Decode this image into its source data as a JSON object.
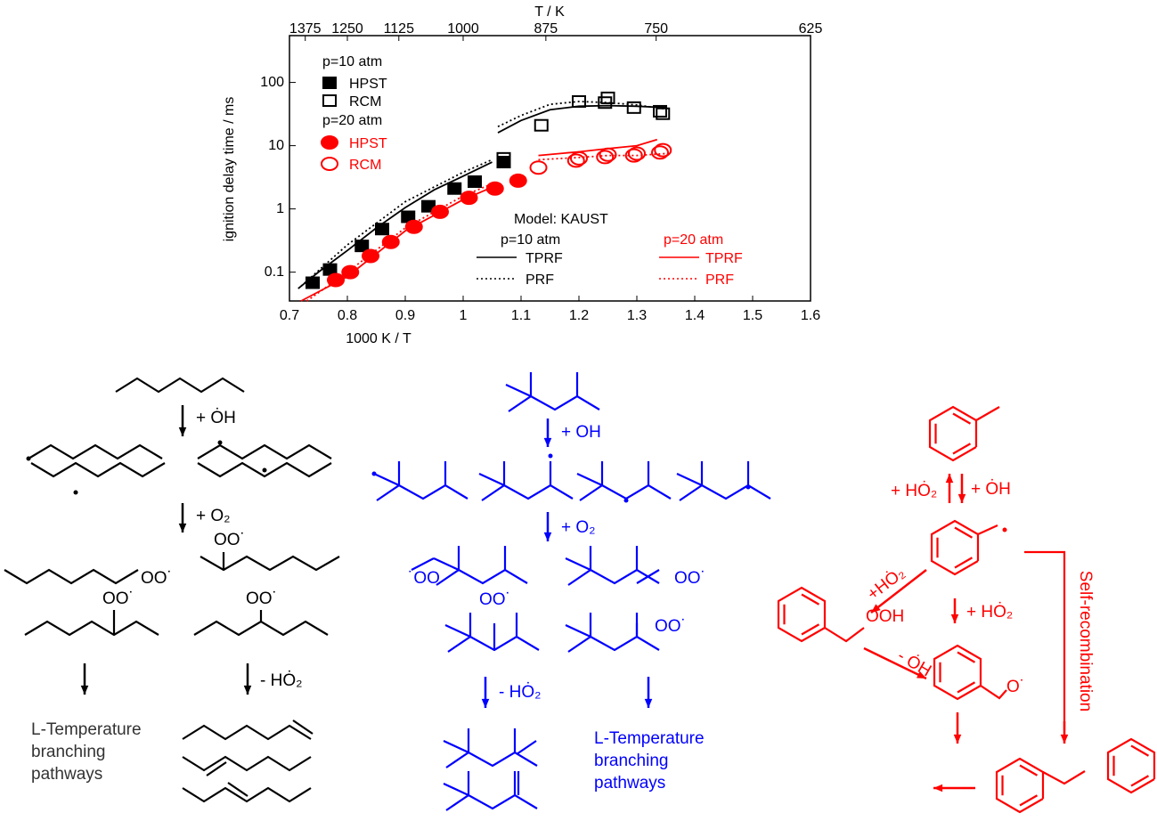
{
  "chart_data": {
    "type": "scatter",
    "xlabel": "1000 K / T",
    "ylabel": "ignition delay time / ms",
    "x2label": "T / K",
    "xlim": [
      0.7,
      1.6
    ],
    "xticks": [
      0.7,
      0.8,
      0.9,
      1.0,
      1.1,
      1.2,
      1.3,
      1.4,
      1.5,
      1.6
    ],
    "ylim": [
      0.035,
      550
    ],
    "yscale": "log",
    "yticks": [
      0.1,
      1,
      10,
      100
    ],
    "x2scale": "reciprocal",
    "x2ticks": [
      1375,
      1250,
      1125,
      1000,
      875,
      750,
      625
    ],
    "legend_titles": [
      "p=10 atm",
      "p=20 atm",
      "Model: KAUST",
      "p=10 atm",
      "p=20 atm"
    ],
    "series": [
      {
        "name": "HPST",
        "color": "#000000",
        "marker": "square",
        "filled": true,
        "x": [
          0.74,
          0.77,
          0.825,
          0.86,
          0.905,
          0.94,
          0.985,
          1.02,
          1.07
        ],
        "values": [
          0.068,
          0.11,
          0.26,
          0.48,
          0.75,
          1.1,
          2.1,
          2.7,
          5.5
        ]
      },
      {
        "name": "RCM",
        "color": "#000000",
        "marker": "square",
        "filled": false,
        "x": [
          1.07,
          1.135,
          1.2,
          1.245,
          1.25,
          1.295,
          1.34,
          1.345
        ],
        "values": [
          6.3,
          21,
          50,
          48,
          57,
          40,
          35,
          32
        ]
      },
      {
        "name": "HPST",
        "color": "#ff0000",
        "marker": "ellipse",
        "filled": true,
        "x": [
          0.78,
          0.805,
          0.84,
          0.875,
          0.915,
          0.96,
          1.01,
          1.055,
          1.095
        ],
        "values": [
          0.075,
          0.1,
          0.18,
          0.3,
          0.52,
          0.9,
          1.5,
          2.1,
          2.8
        ]
      },
      {
        "name": "RCM",
        "color": "#ff0000",
        "marker": "ellipse",
        "filled": false,
        "x": [
          1.13,
          1.195,
          1.2,
          1.245,
          1.25,
          1.295,
          1.3,
          1.34,
          1.345
        ],
        "values": [
          4.5,
          5.8,
          6.3,
          6.6,
          7.2,
          7,
          7.5,
          7.8,
          8.5
        ]
      },
      {
        "name": "TPRF",
        "color": "#000000",
        "dash": false,
        "x": [
          0.715,
          0.75,
          0.8,
          0.85,
          0.9,
          0.95,
          1.0,
          1.05,
          null,
          1.06,
          1.1,
          1.15,
          1.2,
          1.25,
          1.3,
          1.35
        ],
        "values": [
          0.055,
          0.1,
          0.22,
          0.5,
          1.05,
          2,
          3.3,
          5.5,
          null,
          16,
          25,
          37,
          42,
          43,
          42,
          40
        ]
      },
      {
        "name": "PRF",
        "color": "#000000",
        "dash": true,
        "x": [
          0.72,
          0.8,
          0.9,
          1.0,
          1.05,
          null,
          1.06,
          1.1,
          1.15,
          1.2,
          1.25,
          1.3,
          1.35
        ],
        "values": [
          0.06,
          0.27,
          1.3,
          3.8,
          6,
          null,
          20,
          30,
          45,
          50,
          48,
          44,
          38
        ]
      },
      {
        "name": "TPRF",
        "color": "#ff0000",
        "dash": false,
        "x": [
          0.72,
          0.8,
          0.9,
          1.0,
          1.05,
          null,
          1.13,
          1.2,
          1.25,
          1.3,
          1.335
        ],
        "values": [
          0.035,
          0.085,
          0.45,
          1.4,
          2.2,
          null,
          7,
          8,
          9,
          10,
          12.5
        ]
      },
      {
        "name": "PRF",
        "color": "#ff0000",
        "dash": true,
        "x": [
          0.73,
          0.8,
          0.9,
          1.0,
          1.05,
          null,
          1.13,
          1.2,
          1.25,
          1.3,
          1.35
        ],
        "values": [
          0.035,
          0.1,
          0.5,
          1.6,
          2.5,
          null,
          6,
          6.5,
          7,
          7,
          7.5
        ]
      }
    ]
  },
  "diagram": {
    "left": {
      "steps": [
        "+ ȮH",
        "+ O₂",
        "- HȮ₂"
      ],
      "peroxy": [
        "OO˙",
        "OO˙",
        "OO˙",
        "OO˙"
      ],
      "outcome": [
        "L-Temperature",
        "branching",
        "pathways"
      ]
    },
    "middle": {
      "steps": [
        "+ OH",
        "+ O₂",
        "- HȮ₂"
      ],
      "peroxy": [
        "˙OO",
        "OO˙",
        "OO˙",
        "OO˙"
      ],
      "outcome": [
        "L-Temperature",
        "branching",
        "pathways"
      ]
    },
    "right": {
      "reagents": [
        "+ HȮ₂",
        "+ ȮH",
        "+HȮ₂",
        "+ HȮ₂",
        "- ȮH"
      ],
      "groups": [
        "OOH",
        "O˙"
      ],
      "label": "Self-recombination"
    }
  }
}
